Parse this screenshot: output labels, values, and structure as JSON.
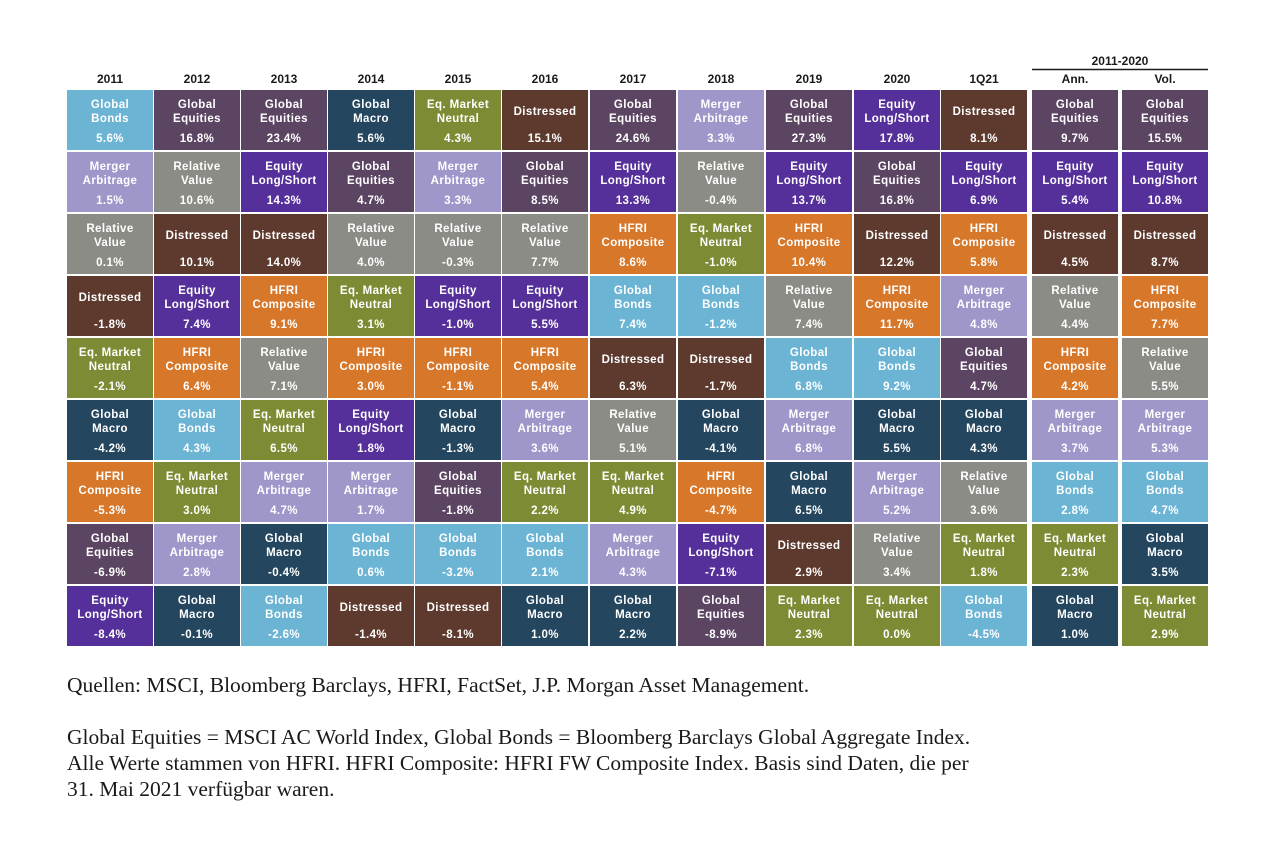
{
  "chart_data": {
    "type": "table",
    "group_header": "2011-2020",
    "columns": [
      "2011",
      "2012",
      "2013",
      "2014",
      "2015",
      "2016",
      "2017",
      "2018",
      "2019",
      "2020",
      "1Q21",
      "Ann.",
      "Vol."
    ],
    "colors": {
      "Global Bonds": "#6cb4d4",
      "Global Equities": "#5c4563",
      "Global Macro": "#24465f",
      "Eq. Market Neutral": "#7d8c34",
      "Distressed": "#5d3a2d",
      "Merger Arbitrage": "#9f96c9",
      "Equity Long/Short": "#56309a",
      "Relative Value": "#8c8c86",
      "HFRI Composite": "#d7772a"
    },
    "cells": [
      [
        {
          "line1": "Global",
          "line2": "Bonds",
          "value": "5.6%",
          "cat": "Global Bonds"
        },
        {
          "line1": "Merger",
          "line2": "Arbitrage",
          "value": "1.5%",
          "cat": "Merger Arbitrage"
        },
        {
          "line1": "Relative",
          "line2": "Value",
          "value": "0.1%",
          "cat": "Relative Value"
        },
        {
          "line1": "Distressed",
          "line2": "",
          "value": "-1.8%",
          "cat": "Distressed"
        },
        {
          "line1": "Eq. Market",
          "line2": "Neutral",
          "value": "-2.1%",
          "cat": "Eq. Market Neutral"
        },
        {
          "line1": "Global",
          "line2": "Macro",
          "value": "-4.2%",
          "cat": "Global Macro"
        },
        {
          "line1": "HFRI",
          "line2": "Composite",
          "value": "-5.3%",
          "cat": "HFRI Composite"
        },
        {
          "line1": "Global",
          "line2": "Equities",
          "value": "-6.9%",
          "cat": "Global Equities"
        },
        {
          "line1": "Equity",
          "line2": "Long/Short",
          "value": "-8.4%",
          "cat": "Equity Long/Short"
        }
      ],
      [
        {
          "line1": "Global",
          "line2": "Equities",
          "value": "16.8%",
          "cat": "Global Equities"
        },
        {
          "line1": "Relative",
          "line2": "Value",
          "value": "10.6%",
          "cat": "Relative Value"
        },
        {
          "line1": "Distressed",
          "line2": "",
          "value": "10.1%",
          "cat": "Distressed"
        },
        {
          "line1": "Equity",
          "line2": "Long/Short",
          "value": "7.4%",
          "cat": "Equity Long/Short"
        },
        {
          "line1": "HFRI",
          "line2": "Composite",
          "value": "6.4%",
          "cat": "HFRI Composite"
        },
        {
          "line1": "Global",
          "line2": "Bonds",
          "value": "4.3%",
          "cat": "Global Bonds"
        },
        {
          "line1": "Eq. Market",
          "line2": "Neutral",
          "value": "3.0%",
          "cat": "Eq. Market Neutral"
        },
        {
          "line1": "Merger",
          "line2": "Arbitrage",
          "value": "2.8%",
          "cat": "Merger Arbitrage"
        },
        {
          "line1": "Global",
          "line2": "Macro",
          "value": "-0.1%",
          "cat": "Global Macro"
        }
      ],
      [
        {
          "line1": "Global",
          "line2": "Equities",
          "value": "23.4%",
          "cat": "Global Equities"
        },
        {
          "line1": "Equity",
          "line2": "Long/Short",
          "value": "14.3%",
          "cat": "Equity Long/Short"
        },
        {
          "line1": "Distressed",
          "line2": "",
          "value": "14.0%",
          "cat": "Distressed"
        },
        {
          "line1": "HFRI",
          "line2": "Composite",
          "value": "9.1%",
          "cat": "HFRI Composite"
        },
        {
          "line1": "Relative",
          "line2": "Value",
          "value": "7.1%",
          "cat": "Relative Value"
        },
        {
          "line1": "Eq. Market",
          "line2": "Neutral",
          "value": "6.5%",
          "cat": "Eq. Market Neutral"
        },
        {
          "line1": "Merger",
          "line2": "Arbitrage",
          "value": "4.7%",
          "cat": "Merger Arbitrage"
        },
        {
          "line1": "Global",
          "line2": "Macro",
          "value": "-0.4%",
          "cat": "Global Macro"
        },
        {
          "line1": "Global",
          "line2": "Bonds",
          "value": "-2.6%",
          "cat": "Global Bonds"
        }
      ],
      [
        {
          "line1": "Global",
          "line2": "Macro",
          "value": "5.6%",
          "cat": "Global Macro"
        },
        {
          "line1": "Global",
          "line2": "Equities",
          "value": "4.7%",
          "cat": "Global Equities"
        },
        {
          "line1": "Relative",
          "line2": "Value",
          "value": "4.0%",
          "cat": "Relative Value"
        },
        {
          "line1": "Eq. Market",
          "line2": "Neutral",
          "value": "3.1%",
          "cat": "Eq. Market Neutral"
        },
        {
          "line1": "HFRI",
          "line2": "Composite",
          "value": "3.0%",
          "cat": "HFRI Composite"
        },
        {
          "line1": "Equity",
          "line2": "Long/Short",
          "value": "1.8%",
          "cat": "Equity Long/Short"
        },
        {
          "line1": "Merger",
          "line2": "Arbitrage",
          "value": "1.7%",
          "cat": "Merger Arbitrage"
        },
        {
          "line1": "Global",
          "line2": "Bonds",
          "value": "0.6%",
          "cat": "Global Bonds"
        },
        {
          "line1": "Distressed",
          "line2": "",
          "value": "-1.4%",
          "cat": "Distressed"
        }
      ],
      [
        {
          "line1": "Eq. Market",
          "line2": "Neutral",
          "value": "4.3%",
          "cat": "Eq. Market Neutral"
        },
        {
          "line1": "Merger",
          "line2": "Arbitrage",
          "value": "3.3%",
          "cat": "Merger Arbitrage"
        },
        {
          "line1": "Relative",
          "line2": "Value",
          "value": "-0.3%",
          "cat": "Relative Value"
        },
        {
          "line1": "Equity",
          "line2": "Long/Short",
          "value": "-1.0%",
          "cat": "Equity Long/Short"
        },
        {
          "line1": "HFRI",
          "line2": "Composite",
          "value": "-1.1%",
          "cat": "HFRI Composite"
        },
        {
          "line1": "Global",
          "line2": "Macro",
          "value": "-1.3%",
          "cat": "Global Macro"
        },
        {
          "line1": "Global",
          "line2": "Equities",
          "value": "-1.8%",
          "cat": "Global Equities"
        },
        {
          "line1": "Global",
          "line2": "Bonds",
          "value": "-3.2%",
          "cat": "Global Bonds"
        },
        {
          "line1": "Distressed",
          "line2": "",
          "value": "-8.1%",
          "cat": "Distressed"
        }
      ],
      [
        {
          "line1": "Distressed",
          "line2": "",
          "value": "15.1%",
          "cat": "Distressed"
        },
        {
          "line1": "Global",
          "line2": "Equities",
          "value": "8.5%",
          "cat": "Global Equities"
        },
        {
          "line1": "Relative",
          "line2": "Value",
          "value": "7.7%",
          "cat": "Relative Value"
        },
        {
          "line1": "Equity",
          "line2": "Long/Short",
          "value": "5.5%",
          "cat": "Equity Long/Short"
        },
        {
          "line1": "HFRI",
          "line2": "Composite",
          "value": "5.4%",
          "cat": "HFRI Composite"
        },
        {
          "line1": "Merger",
          "line2": "Arbitrage",
          "value": "3.6%",
          "cat": "Merger Arbitrage"
        },
        {
          "line1": "Eq. Market",
          "line2": "Neutral",
          "value": "2.2%",
          "cat": "Eq. Market Neutral"
        },
        {
          "line1": "Global",
          "line2": "Bonds",
          "value": "2.1%",
          "cat": "Global Bonds"
        },
        {
          "line1": "Global",
          "line2": "Macro",
          "value": "1.0%",
          "cat": "Global Macro"
        }
      ],
      [
        {
          "line1": "Global",
          "line2": "Equities",
          "value": "24.6%",
          "cat": "Global Equities"
        },
        {
          "line1": "Equity",
          "line2": "Long/Short",
          "value": "13.3%",
          "cat": "Equity Long/Short"
        },
        {
          "line1": "HFRI",
          "line2": "Composite",
          "value": "8.6%",
          "cat": "HFRI Composite"
        },
        {
          "line1": "Global",
          "line2": "Bonds",
          "value": "7.4%",
          "cat": "Global Bonds"
        },
        {
          "line1": "Distressed",
          "line2": "",
          "value": "6.3%",
          "cat": "Distressed"
        },
        {
          "line1": "Relative",
          "line2": "Value",
          "value": "5.1%",
          "cat": "Relative Value"
        },
        {
          "line1": "Eq. Market",
          "line2": "Neutral",
          "value": "4.9%",
          "cat": "Eq. Market Neutral"
        },
        {
          "line1": "Merger",
          "line2": "Arbitrage",
          "value": "4.3%",
          "cat": "Merger Arbitrage"
        },
        {
          "line1": "Global",
          "line2": "Macro",
          "value": "2.2%",
          "cat": "Global Macro"
        }
      ],
      [
        {
          "line1": "Merger",
          "line2": "Arbitrage",
          "value": "3.3%",
          "cat": "Merger Arbitrage"
        },
        {
          "line1": "Relative",
          "line2": "Value",
          "value": "-0.4%",
          "cat": "Relative Value"
        },
        {
          "line1": "Eq. Market",
          "line2": "Neutral",
          "value": "-1.0%",
          "cat": "Eq. Market Neutral"
        },
        {
          "line1": "Global",
          "line2": "Bonds",
          "value": "-1.2%",
          "cat": "Global Bonds"
        },
        {
          "line1": "Distressed",
          "line2": "",
          "value": "-1.7%",
          "cat": "Distressed"
        },
        {
          "line1": "Global",
          "line2": "Macro",
          "value": "-4.1%",
          "cat": "Global Macro"
        },
        {
          "line1": "HFRI",
          "line2": "Composite",
          "value": "-4.7%",
          "cat": "HFRI Composite"
        },
        {
          "line1": "Equity",
          "line2": "Long/Short",
          "value": "-7.1%",
          "cat": "Equity Long/Short"
        },
        {
          "line1": "Global",
          "line2": "Equities",
          "value": "-8.9%",
          "cat": "Global Equities"
        }
      ],
      [
        {
          "line1": "Global",
          "line2": "Equities",
          "value": "27.3%",
          "cat": "Global Equities"
        },
        {
          "line1": "Equity",
          "line2": "Long/Short",
          "value": "13.7%",
          "cat": "Equity Long/Short"
        },
        {
          "line1": "HFRI",
          "line2": "Composite",
          "value": "10.4%",
          "cat": "HFRI Composite"
        },
        {
          "line1": "Relative",
          "line2": "Value",
          "value": "7.4%",
          "cat": "Relative Value"
        },
        {
          "line1": "Global",
          "line2": "Bonds",
          "value": "6.8%",
          "cat": "Global Bonds"
        },
        {
          "line1": "Merger",
          "line2": "Arbitrage",
          "value": "6.8%",
          "cat": "Merger Arbitrage"
        },
        {
          "line1": "Global",
          "line2": "Macro",
          "value": "6.5%",
          "cat": "Global Macro"
        },
        {
          "line1": "Distressed",
          "line2": "",
          "value": "2.9%",
          "cat": "Distressed"
        },
        {
          "line1": "Eq. Market",
          "line2": "Neutral",
          "value": "2.3%",
          "cat": "Eq. Market Neutral"
        }
      ],
      [
        {
          "line1": "Equity",
          "line2": "Long/Short",
          "value": "17.8%",
          "cat": "Equity Long/Short"
        },
        {
          "line1": "Global",
          "line2": "Equities",
          "value": "16.8%",
          "cat": "Global Equities"
        },
        {
          "line1": "Distressed",
          "line2": "",
          "value": "12.2%",
          "cat": "Distressed"
        },
        {
          "line1": "HFRI",
          "line2": "Composite",
          "value": "11.7%",
          "cat": "HFRI Composite"
        },
        {
          "line1": "Global",
          "line2": "Bonds",
          "value": "9.2%",
          "cat": "Global Bonds"
        },
        {
          "line1": "Global",
          "line2": "Macro",
          "value": "5.5%",
          "cat": "Global Macro"
        },
        {
          "line1": "Merger",
          "line2": "Arbitrage",
          "value": "5.2%",
          "cat": "Merger Arbitrage"
        },
        {
          "line1": "Relative",
          "line2": "Value",
          "value": "3.4%",
          "cat": "Relative Value"
        },
        {
          "line1": "Eq. Market",
          "line2": "Neutral",
          "value": "0.0%",
          "cat": "Eq. Market Neutral"
        }
      ],
      [
        {
          "line1": "Distressed",
          "line2": "",
          "value": "8.1%",
          "cat": "Distressed"
        },
        {
          "line1": "Equity",
          "line2": "Long/Short",
          "value": "6.9%",
          "cat": "Equity Long/Short"
        },
        {
          "line1": "HFRI",
          "line2": "Composite",
          "value": "5.8%",
          "cat": "HFRI Composite"
        },
        {
          "line1": "Merger",
          "line2": "Arbitrage",
          "value": "4.8%",
          "cat": "Merger Arbitrage"
        },
        {
          "line1": "Global",
          "line2": "Equities",
          "value": "4.7%",
          "cat": "Global Equities"
        },
        {
          "line1": "Global",
          "line2": "Macro",
          "value": "4.3%",
          "cat": "Global Macro"
        },
        {
          "line1": "Relative",
          "line2": "Value",
          "value": "3.6%",
          "cat": "Relative Value"
        },
        {
          "line1": "Eq. Market",
          "line2": "Neutral",
          "value": "1.8%",
          "cat": "Eq. Market Neutral"
        },
        {
          "line1": "Global",
          "line2": "Bonds",
          "value": "-4.5%",
          "cat": "Global Bonds"
        }
      ],
      [
        {
          "line1": "Global",
          "line2": "Equities",
          "value": "9.7%",
          "cat": "Global Equities"
        },
        {
          "line1": "Equity",
          "line2": "Long/Short",
          "value": "5.4%",
          "cat": "Equity Long/Short"
        },
        {
          "line1": "Distressed",
          "line2": "",
          "value": "4.5%",
          "cat": "Distressed"
        },
        {
          "line1": "Relative",
          "line2": "Value",
          "value": "4.4%",
          "cat": "Relative Value"
        },
        {
          "line1": "HFRI",
          "line2": "Composite",
          "value": "4.2%",
          "cat": "HFRI Composite"
        },
        {
          "line1": "Merger",
          "line2": "Arbitrage",
          "value": "3.7%",
          "cat": "Merger Arbitrage"
        },
        {
          "line1": "Global",
          "line2": "Bonds",
          "value": "2.8%",
          "cat": "Global Bonds"
        },
        {
          "line1": "Eq. Market",
          "line2": "Neutral",
          "value": "2.3%",
          "cat": "Eq. Market Neutral"
        },
        {
          "line1": "Global",
          "line2": "Macro",
          "value": "1.0%",
          "cat": "Global Macro"
        }
      ],
      [
        {
          "line1": "Global",
          "line2": "Equities",
          "value": "15.5%",
          "cat": "Global Equities"
        },
        {
          "line1": "Equity",
          "line2": "Long/Short",
          "value": "10.8%",
          "cat": "Equity Long/Short"
        },
        {
          "line1": "Distressed",
          "line2": "",
          "value": "8.7%",
          "cat": "Distressed"
        },
        {
          "line1": "HFRI",
          "line2": "Composite",
          "value": "7.7%",
          "cat": "HFRI Composite"
        },
        {
          "line1": "Relative",
          "line2": "Value",
          "value": "5.5%",
          "cat": "Relative Value"
        },
        {
          "line1": "Merger",
          "line2": "Arbitrage",
          "value": "5.3%",
          "cat": "Merger Arbitrage"
        },
        {
          "line1": "Global",
          "line2": "Bonds",
          "value": "4.7%",
          "cat": "Global Bonds"
        },
        {
          "line1": "Global",
          "line2": "Macro",
          "value": "3.5%",
          "cat": "Global Macro"
        },
        {
          "line1": "Eq. Market",
          "line2": "Neutral",
          "value": "2.9%",
          "cat": "Eq. Market Neutral"
        }
      ]
    ]
  },
  "notes": {
    "sources": "Quellen: MSCI, Bloomberg Barclays, HFRI, FactSet, J.P. Morgan Asset Management.",
    "footnote_line1": "Global Equities = MSCI AC World Index, Global Bonds = Bloomberg Barclays Global Aggregate Index.",
    "footnote_line2": "Alle Werte stammen von HFRI. HFRI Composite: HFRI FW Composite Index. Basis sind Daten, die per",
    "footnote_line3": "31. Mai 2021 verfügbar waren."
  }
}
